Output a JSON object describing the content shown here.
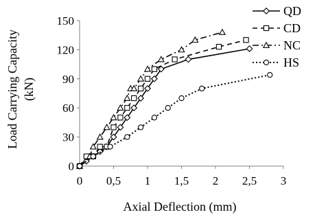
{
  "chart_data": {
    "type": "line",
    "xlabel": "Axial Deflection (mm)",
    "ylabel_lines": [
      "Load Carrying Capacity",
      "(kN)"
    ],
    "xlim": [
      0,
      3
    ],
    "ylim": [
      0,
      150
    ],
    "x_ticks": [
      "0",
      "0,5",
      "1",
      "1,5",
      "2",
      "2,5",
      "3"
    ],
    "y_ticks": [
      "0",
      "30",
      "60",
      "90",
      "120",
      "150"
    ],
    "grid": false,
    "legend_position": "top-right",
    "series": [
      {
        "name": "QD",
        "line_style": "solid",
        "marker": "diamond",
        "color": "#000000",
        "x": [
          0,
          0.1,
          0.2,
          0.3,
          0.4,
          0.5,
          0.6,
          0.7,
          0.8,
          0.9,
          1.0,
          1.1,
          1.2,
          1.6,
          2.5
        ],
        "y": [
          0,
          5,
          10,
          15,
          20,
          30,
          40,
          50,
          60,
          70,
          80,
          90,
          100,
          110,
          121
        ]
      },
      {
        "name": "CD",
        "line_style": "dashed",
        "marker": "square",
        "color": "#000000",
        "x": [
          0,
          0.1,
          0.2,
          0.3,
          0.4,
          0.5,
          0.6,
          0.7,
          0.8,
          0.9,
          1.0,
          1.1,
          1.4,
          2.05,
          2.45
        ],
        "y": [
          0,
          10,
          10,
          20,
          20,
          40,
          50,
          60,
          70,
          80,
          90,
          100,
          110,
          123,
          130
        ]
      },
      {
        "name": "NC",
        "line_style": "dashdot",
        "marker": "triangle",
        "color": "#000000",
        "x": [
          0,
          0.15,
          0.2,
          0.3,
          0.4,
          0.5,
          0.6,
          0.7,
          0.75,
          0.8,
          0.9,
          1.0,
          1.2,
          1.5,
          1.7,
          2.1
        ],
        "y": [
          0,
          10,
          20,
          30,
          40,
          50,
          60,
          70,
          80,
          80,
          90,
          100,
          110,
          120,
          130,
          138
        ]
      },
      {
        "name": "HS",
        "line_style": "dotted",
        "marker": "circle",
        "color": "#000000",
        "x": [
          0,
          0.2,
          0.45,
          0.7,
          0.9,
          1.1,
          1.3,
          1.5,
          1.8,
          2.8
        ],
        "y": [
          0,
          10,
          20,
          30,
          40,
          50,
          60,
          70,
          80,
          94
        ]
      }
    ]
  }
}
